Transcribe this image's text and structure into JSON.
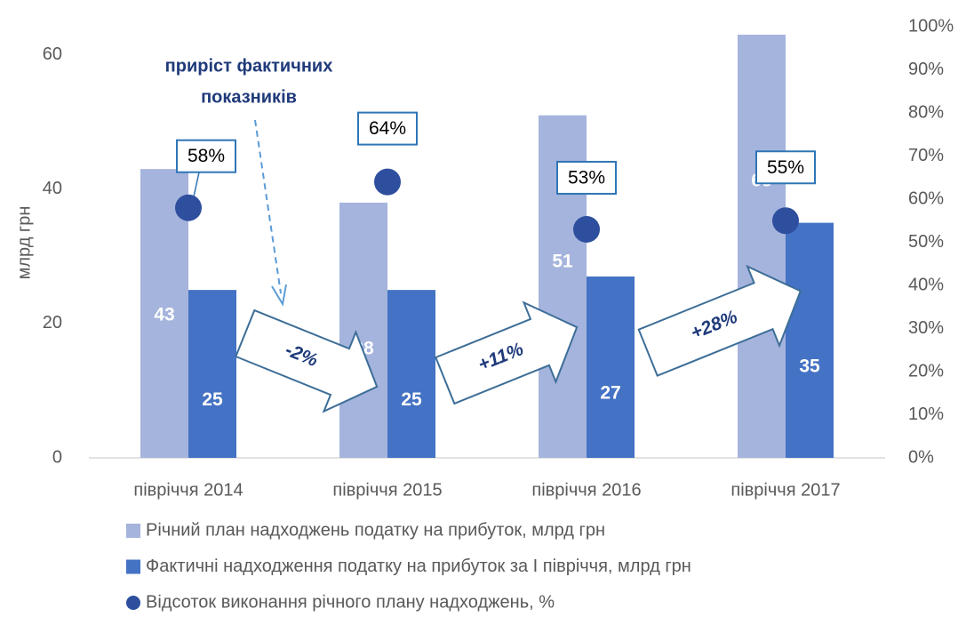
{
  "chart_data": {
    "type": "bar",
    "y_label": "млрд грн",
    "categories": [
      "півріччя 2014",
      "півріччя 2015",
      "півріччя 2016",
      "півріччя 2017"
    ],
    "series": [
      {
        "name": "Річний план надходжень податку на прибуток, млрд грн",
        "color": "#a5b4dc",
        "values": [
          43,
          38,
          51,
          63
        ]
      },
      {
        "name": "Фактичні надходження податку на прибуток за І півріччя, млрд грн",
        "color": "#4472c4",
        "values": [
          25,
          25,
          27,
          35
        ]
      },
      {
        "name": "Відсоток виконання річного плану надходжень, %",
        "color": "#2e4f9e",
        "type": "scatter",
        "axis": "y2",
        "values": [
          58,
          64,
          53,
          55
        ],
        "value_labels": [
          "58%",
          "64%",
          "53%",
          "55%"
        ]
      }
    ],
    "ylim": [
      0,
      64.2
    ],
    "yticks": [
      0,
      20,
      40,
      60
    ],
    "y2lim": [
      0,
      100
    ],
    "y2ticks": [
      {
        "value": 0,
        "label": "0%"
      },
      {
        "value": 10,
        "label": "10%"
      },
      {
        "value": 20,
        "label": "20%"
      },
      {
        "value": 30,
        "label": "30%"
      },
      {
        "value": 40,
        "label": "40%"
      },
      {
        "value": 50,
        "label": "50%"
      },
      {
        "value": 60,
        "label": "60%"
      },
      {
        "value": 70,
        "label": "70%"
      },
      {
        "value": 80,
        "label": "80%"
      },
      {
        "value": 90,
        "label": "90%"
      },
      {
        "value": 100,
        "label": "100%"
      }
    ],
    "grid": false,
    "legend": "bottom",
    "annotations": [
      {
        "text_lines": [
          "приріст фактичних",
          "показників"
        ]
      },
      {
        "text": "-2%"
      },
      {
        "text": "+11%"
      },
      {
        "text": "+28%"
      }
    ]
  }
}
